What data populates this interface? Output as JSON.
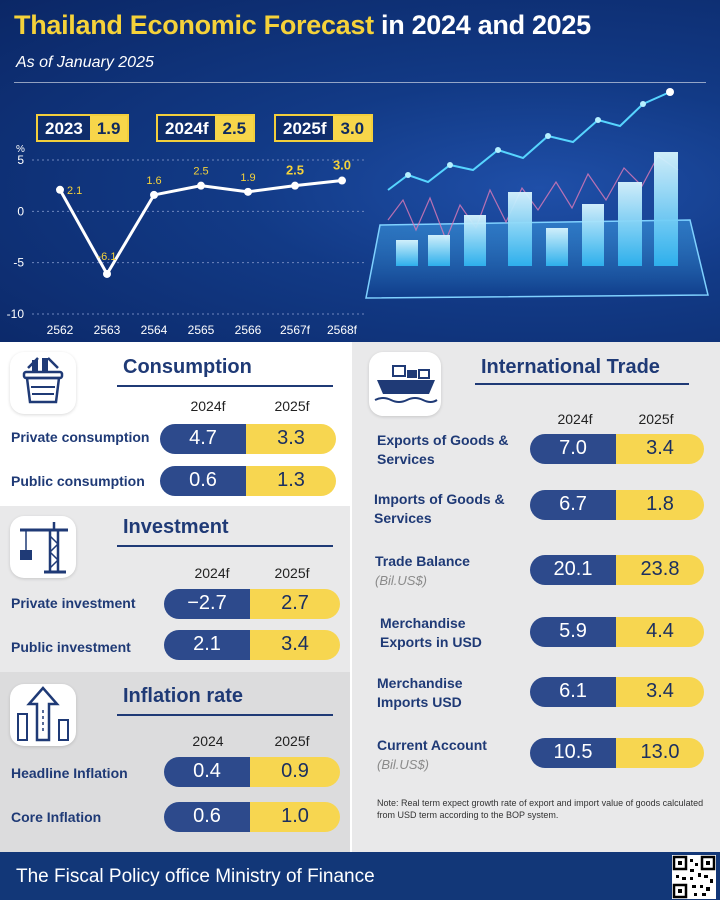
{
  "header": {
    "title_part1": "Thailand Economic Forecast",
    "title_part2": "in 2024 and 2025",
    "as_of": "As of January 2025"
  },
  "gdp_boxes": [
    {
      "year": "2023",
      "value": "1.9"
    },
    {
      "year": "2024f",
      "value": "2.5"
    },
    {
      "year": "2025f",
      "value": "3.0"
    }
  ],
  "chart_data": {
    "type": "line",
    "ylabel": "%",
    "categories": [
      "2562",
      "2563",
      "2564",
      "2565",
      "2566",
      "2567f",
      "2568f"
    ],
    "values": [
      2.1,
      -6.1,
      1.6,
      2.5,
      1.9,
      2.5,
      3.0
    ],
    "value_labels": [
      "2.1",
      "-6.1",
      "1.6",
      "2.5",
      "1.9",
      "2.5",
      "3.0"
    ],
    "highlight_from_index": 5,
    "yticks": [
      5,
      0,
      -5,
      -10
    ],
    "ylim": [
      -10,
      5
    ],
    "grid": true,
    "colors": {
      "line": "#ffffff",
      "label": "#f5d23a",
      "grid": "#6f86bd"
    }
  },
  "consumption": {
    "title": "Consumption",
    "col1": "2024f",
    "col2": "2025f",
    "rows": [
      {
        "label": "Private consumption",
        "v1": "4.7",
        "v2": "3.3"
      },
      {
        "label": "Public consumption",
        "v1": "0.6",
        "v2": "1.3"
      }
    ]
  },
  "investment": {
    "title": "Investment",
    "col1": "2024f",
    "col2": "2025f",
    "rows": [
      {
        "label": "Private investment",
        "v1": "−2.7",
        "v2": "2.7"
      },
      {
        "label": "Public investment",
        "v1": "2.1",
        "v2": "3.4"
      }
    ]
  },
  "inflation": {
    "title": "Inflation rate",
    "col1": "2024",
    "col2": "2025f",
    "rows": [
      {
        "label": "Headline Inflation",
        "v1": "0.4",
        "v2": "0.9"
      },
      {
        "label": "Core Inflation",
        "v1": "0.6",
        "v2": "1.0"
      }
    ]
  },
  "trade": {
    "title": "International Trade",
    "col1": "2024f",
    "col2": "2025f",
    "rows": [
      {
        "label1": "Exports of Goods &",
        "label2": "Services",
        "v1": "7.0",
        "v2": "3.4"
      },
      {
        "label1": "Imports of Goods &",
        "label2": "Services",
        "v1": "6.7",
        "v2": "1.8"
      },
      {
        "label1": "Trade Balance",
        "sub": "(Bil.US$)",
        "v1": "20.1",
        "v2": "23.8"
      },
      {
        "label1": "Merchandise",
        "label2": "Exports in USD",
        "v1": "5.9",
        "v2": "4.4"
      },
      {
        "label1": "Merchandise",
        "label2": "Imports USD",
        "v1": "6.1",
        "v2": "3.4"
      },
      {
        "label1": "Current Account",
        "sub": "(Bil.US$)",
        "v1": "10.5",
        "v2": "13.0"
      }
    ],
    "note": "Note: Real term expect growth rate of export and import value of goods calculated from USD term according to the BOP system."
  },
  "footer": {
    "text": "The Fiscal Policy office Ministry of Finance"
  },
  "icons": {
    "consumption": "shopping-basket-icon",
    "investment": "construction-crane-icon",
    "inflation": "rising-arrow-icon",
    "trade": "cargo-ship-icon",
    "qr": "qr-code-icon"
  },
  "colors": {
    "navy": "#1f3a76",
    "pill_blue": "#2d4a8c",
    "pill_yellow": "#f7d650",
    "accent_yellow": "#f5d23a"
  }
}
